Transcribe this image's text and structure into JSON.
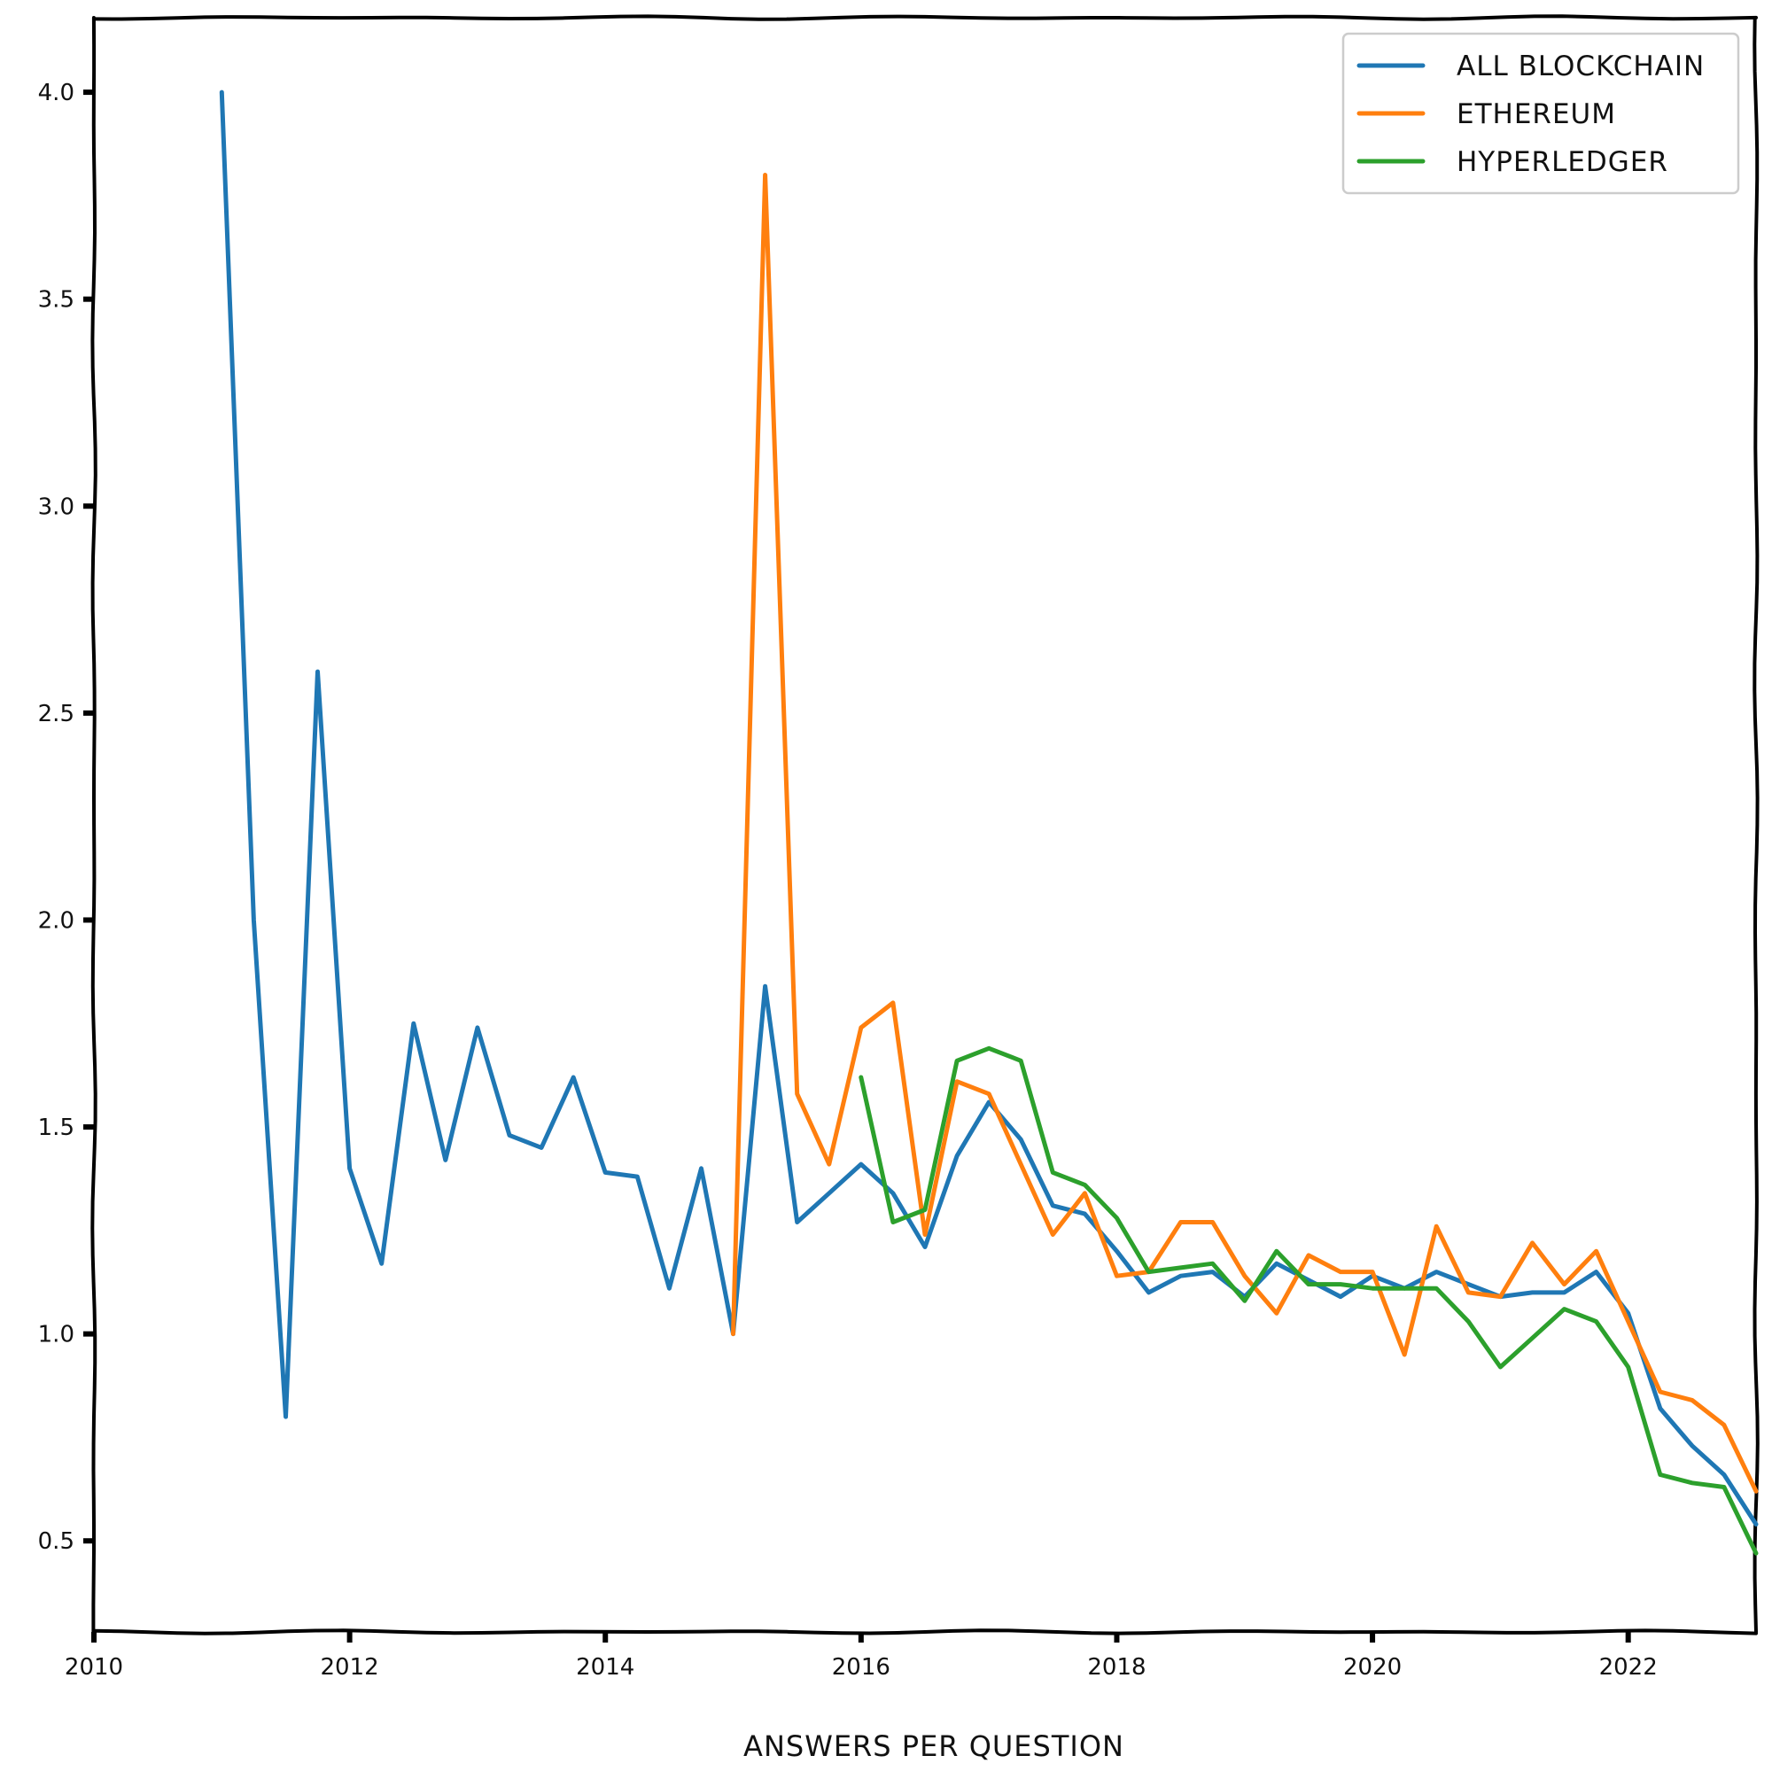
{
  "chart_data": {
    "type": "line",
    "title": "",
    "xlabel": "ANSWERS PER QUESTION",
    "ylabel": "",
    "xlim": [
      2010,
      2023
    ],
    "ylim": [
      0.28,
      4.18
    ],
    "x_ticks": [
      2010,
      2012,
      2014,
      2016,
      2018,
      2020,
      2022
    ],
    "x_tick_labels": [
      "2010",
      "2012",
      "2014",
      "2016",
      "2018",
      "2020",
      "2022"
    ],
    "y_ticks": [
      0.5,
      1.0,
      1.5,
      2.0,
      2.5,
      3.0,
      3.5,
      4.0
    ],
    "y_tick_labels": [
      "0.5",
      "1.0",
      "1.5",
      "2.0",
      "2.5",
      "3.0",
      "3.5",
      "4.0"
    ],
    "grid": false,
    "legend_position": "top-right",
    "series": [
      {
        "name": "ALL BLOCKCHAIN",
        "color": "#1f77b4",
        "points": [
          [
            2011.0,
            4.0
          ],
          [
            2011.25,
            2.0
          ],
          [
            2011.5,
            0.8
          ],
          [
            2011.75,
            2.6
          ],
          [
            2012.0,
            1.4
          ],
          [
            2012.25,
            1.17
          ],
          [
            2012.5,
            1.75
          ],
          [
            2012.75,
            1.42
          ],
          [
            2013.0,
            1.74
          ],
          [
            2013.25,
            1.48
          ],
          [
            2013.5,
            1.45
          ],
          [
            2013.75,
            1.62
          ],
          [
            2014.0,
            1.39
          ],
          [
            2014.25,
            1.38
          ],
          [
            2014.5,
            1.11
          ],
          [
            2014.75,
            1.4
          ],
          [
            2015.0,
            1.0
          ],
          [
            2015.25,
            1.84
          ],
          [
            2015.5,
            1.27
          ],
          [
            2015.75,
            1.34
          ],
          [
            2016.0,
            1.41
          ],
          [
            2016.25,
            1.34
          ],
          [
            2016.5,
            1.21
          ],
          [
            2016.75,
            1.43
          ],
          [
            2017.0,
            1.56
          ],
          [
            2017.25,
            1.47
          ],
          [
            2017.5,
            1.31
          ],
          [
            2017.75,
            1.29
          ],
          [
            2018.0,
            1.2
          ],
          [
            2018.25,
            1.1
          ],
          [
            2018.5,
            1.14
          ],
          [
            2018.75,
            1.15
          ],
          [
            2019.0,
            1.09
          ],
          [
            2019.25,
            1.17
          ],
          [
            2019.5,
            1.13
          ],
          [
            2019.75,
            1.09
          ],
          [
            2020.0,
            1.14
          ],
          [
            2020.25,
            1.11
          ],
          [
            2020.5,
            1.15
          ],
          [
            2020.75,
            1.12
          ],
          [
            2021.0,
            1.09
          ],
          [
            2021.25,
            1.1
          ],
          [
            2021.5,
            1.1
          ],
          [
            2021.75,
            1.15
          ],
          [
            2022.0,
            1.05
          ],
          [
            2022.25,
            0.82
          ],
          [
            2022.5,
            0.73
          ],
          [
            2022.75,
            0.66
          ],
          [
            2023.0,
            0.54
          ]
        ]
      },
      {
        "name": "ETHEREUM",
        "color": "#ff7f0e",
        "points": [
          [
            2015.0,
            1.0
          ],
          [
            2015.25,
            3.8
          ],
          [
            2015.5,
            1.58
          ],
          [
            2015.75,
            1.41
          ],
          [
            2016.0,
            1.74
          ],
          [
            2016.25,
            1.8
          ],
          [
            2016.5,
            1.24
          ],
          [
            2016.75,
            1.61
          ],
          [
            2017.0,
            1.58
          ],
          [
            2017.25,
            1.41
          ],
          [
            2017.5,
            1.24
          ],
          [
            2017.75,
            1.34
          ],
          [
            2018.0,
            1.14
          ],
          [
            2018.25,
            1.15
          ],
          [
            2018.5,
            1.27
          ],
          [
            2018.75,
            1.27
          ],
          [
            2019.0,
            1.14
          ],
          [
            2019.25,
            1.05
          ],
          [
            2019.5,
            1.19
          ],
          [
            2019.75,
            1.15
          ],
          [
            2020.0,
            1.15
          ],
          [
            2020.25,
            0.95
          ],
          [
            2020.5,
            1.26
          ],
          [
            2020.75,
            1.1
          ],
          [
            2021.0,
            1.09
          ],
          [
            2021.25,
            1.22
          ],
          [
            2021.5,
            1.12
          ],
          [
            2021.75,
            1.2
          ],
          [
            2022.0,
            1.03
          ],
          [
            2022.25,
            0.86
          ],
          [
            2022.5,
            0.84
          ],
          [
            2022.75,
            0.78
          ],
          [
            2023.0,
            0.62
          ]
        ]
      },
      {
        "name": "HYPERLEDGER",
        "color": "#2ca02c",
        "points": [
          [
            2016.0,
            1.62
          ],
          [
            2016.25,
            1.27
          ],
          [
            2016.5,
            1.3
          ],
          [
            2016.75,
            1.66
          ],
          [
            2017.0,
            1.69
          ],
          [
            2017.25,
            1.66
          ],
          [
            2017.5,
            1.39
          ],
          [
            2017.75,
            1.36
          ],
          [
            2018.0,
            1.28
          ],
          [
            2018.25,
            1.15
          ],
          [
            2018.5,
            1.16
          ],
          [
            2018.75,
            1.17
          ],
          [
            2019.0,
            1.08
          ],
          [
            2019.25,
            1.2
          ],
          [
            2019.5,
            1.12
          ],
          [
            2019.75,
            1.12
          ],
          [
            2020.0,
            1.11
          ],
          [
            2020.25,
            1.11
          ],
          [
            2020.5,
            1.11
          ],
          [
            2020.75,
            1.03
          ],
          [
            2021.0,
            0.92
          ],
          [
            2021.25,
            0.99
          ],
          [
            2021.5,
            1.06
          ],
          [
            2021.75,
            1.03
          ],
          [
            2022.0,
            0.92
          ],
          [
            2022.25,
            0.66
          ],
          [
            2022.5,
            0.64
          ],
          [
            2022.75,
            0.63
          ],
          [
            2023.0,
            0.47
          ]
        ]
      }
    ]
  }
}
